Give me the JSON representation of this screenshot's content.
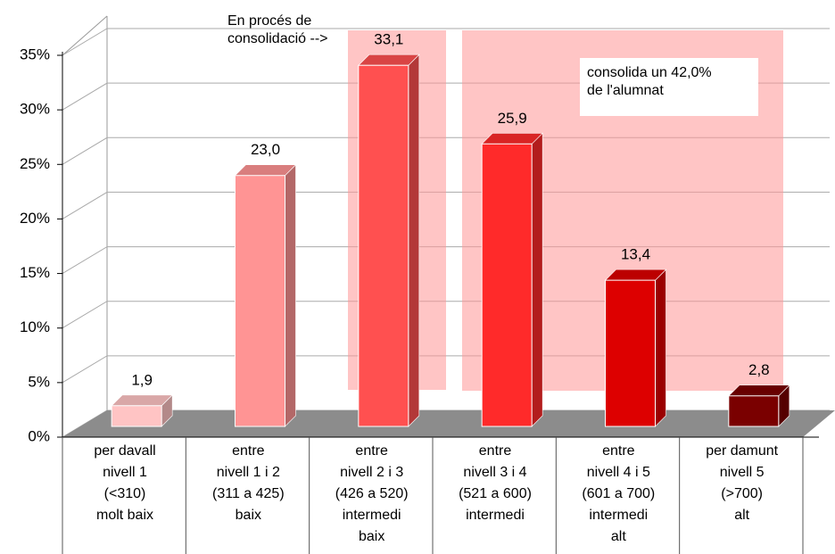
{
  "chart_data": {
    "type": "bar",
    "categories": [
      "per davall\nnivell 1\n(<310)\nmolt baix",
      "entre\nnivell 1 i 2\n(311 a 425)\nbaix",
      "entre\nnivell 2 i 3\n(426 a 520)\nintermedi\nbaix",
      "entre\nnivell 3 i 4\n(521 a 600)\nintermedi",
      "entre\nnivell 4 i 5\n(601 a 700)\nintermedi\nalt",
      "per damunt\nnivell 5\n(>700)\nalt"
    ],
    "values": [
      1.9,
      23.0,
      33.1,
      25.9,
      13.4,
      2.8
    ],
    "value_labels": [
      "1,9",
      "23,0",
      "33,1",
      "25,9",
      "13,4",
      "2,8"
    ],
    "colors": [
      "#ffc4c4",
      "#ff9494",
      "#ff5050",
      "#ff2a2a",
      "#dd0000",
      "#7a0000"
    ],
    "ylim": [
      0,
      35
    ],
    "yticks": [
      {
        "value": 0,
        "label": "0%"
      },
      {
        "value": 5,
        "label": "5%"
      },
      {
        "value": 10,
        "label": "10%"
      },
      {
        "value": 15,
        "label": "15%"
      },
      {
        "value": 20,
        "label": "20%"
      },
      {
        "value": 25,
        "label": "25%"
      },
      {
        "value": 30,
        "label": "30%"
      },
      {
        "value": 35,
        "label": "35%"
      }
    ],
    "grid": true,
    "annotations": [
      "En procés de\nconsolidació -->",
      "consolida un 42,0%\nde l'alumnat"
    ]
  }
}
